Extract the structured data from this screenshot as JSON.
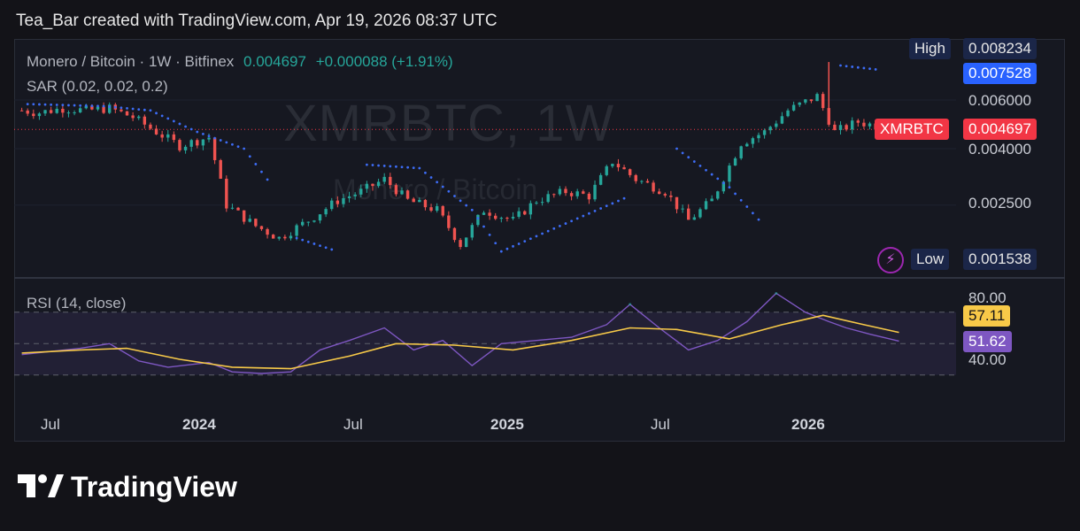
{
  "header": {
    "caption": "Tea_Bar created with TradingView.com, Apr 19, 2026 08:37 UTC"
  },
  "legend": {
    "symbol": "Monero / Bitcoin · 1W · Bitfinex",
    "price": "0.004697",
    "change": "+0.000088 (+1.91%)",
    "sar": "SAR (0.02, 0.02, 0.2)",
    "rsi": "RSI (14, close)"
  },
  "watermark": {
    "ticker": "XMRBTC, 1W",
    "name": "Monero / Bitcoin"
  },
  "price_axis": {
    "high_label": "High",
    "high_value": "0.008234",
    "sar_value": "0.007528",
    "ticker_tag": "XMRBTC",
    "last_value": "0.004697",
    "low_label": "Low",
    "low_value": "0.001538",
    "ticks": [
      "0.006000",
      "0.004000",
      "0.002500"
    ]
  },
  "rsi_axis": {
    "ticks": [
      "80.00",
      "40.00"
    ],
    "ma_value": "57.11",
    "rsi_value": "51.62"
  },
  "time_axis": [
    {
      "label": "Jul",
      "bold": false
    },
    {
      "label": "2024",
      "bold": true
    },
    {
      "label": "Jul",
      "bold": false
    },
    {
      "label": "2025",
      "bold": true
    },
    {
      "label": "Jul",
      "bold": false
    },
    {
      "label": "2026",
      "bold": true
    }
  ],
  "brand": {
    "name": "TradingView"
  },
  "colors": {
    "up": "#26a69a",
    "down": "#ef5350",
    "sar": "#3d6cf5",
    "rsi": "#7e57c2",
    "rsi_ma": "#f7c948",
    "last_price": "#f23645"
  },
  "chart_data": [
    {
      "type": "candlestick",
      "title": "Monero / Bitcoin · 1W · Bitfinex",
      "interval": "1W",
      "scale": "log",
      "x_labels": [
        "Jul",
        "2024",
        "Jul",
        "2025",
        "Jul",
        "2026"
      ],
      "price_ticks": [
        0.006,
        0.004,
        0.0025
      ],
      "last": 0.004697,
      "high": 0.008234,
      "low": 0.001538,
      "close_path": [
        {
          "date": "2023-05-29",
          "close": 0.0055
        },
        {
          "date": "2023-06-19",
          "close": 0.0054
        },
        {
          "date": "2023-07-17",
          "close": 0.0056
        },
        {
          "date": "2023-08-14",
          "close": 0.0055
        },
        {
          "date": "2023-09-11",
          "close": 0.0056
        },
        {
          "date": "2023-10-09",
          "close": 0.0052
        },
        {
          "date": "2023-11-06",
          "close": 0.0046
        },
        {
          "date": "2023-12-04",
          "close": 0.0041
        },
        {
          "date": "2024-01-08",
          "close": 0.0044
        },
        {
          "date": "2024-01-29",
          "close": 0.0025
        },
        {
          "date": "2024-03-04",
          "close": 0.0021
        },
        {
          "date": "2024-04-01",
          "close": 0.0019
        },
        {
          "date": "2024-05-06",
          "close": 0.0022
        },
        {
          "date": "2024-06-10",
          "close": 0.0026
        },
        {
          "date": "2024-07-08",
          "close": 0.0028
        },
        {
          "date": "2024-08-05",
          "close": 0.0031
        },
        {
          "date": "2024-09-02",
          "close": 0.0026
        },
        {
          "date": "2024-10-07",
          "close": 0.0024
        },
        {
          "date": "2024-11-04",
          "close": 0.0018
        },
        {
          "date": "2024-12-02",
          "close": 0.0024
        },
        {
          "date": "2025-01-06",
          "close": 0.0022
        },
        {
          "date": "2025-02-03",
          "close": 0.0026
        },
        {
          "date": "2025-03-10",
          "close": 0.0028
        },
        {
          "date": "2025-04-07",
          "close": 0.0027
        },
        {
          "date": "2025-05-05",
          "close": 0.0036
        },
        {
          "date": "2025-06-02",
          "close": 0.0031
        },
        {
          "date": "2025-07-07",
          "close": 0.0028
        },
        {
          "date": "2025-08-04",
          "close": 0.0022
        },
        {
          "date": "2025-09-01",
          "close": 0.0026
        },
        {
          "date": "2025-10-06",
          "close": 0.0042
        },
        {
          "date": "2025-11-03",
          "close": 0.0046
        },
        {
          "date": "2025-12-01",
          "close": 0.0055
        },
        {
          "date": "2026-01-05",
          "close": 0.0062
        },
        {
          "date": "2026-01-26",
          "close": 0.0046
        },
        {
          "date": "2026-02-23",
          "close": 0.005
        },
        {
          "date": "2026-03-23",
          "close": 0.0048
        },
        {
          "date": "2026-04-13",
          "close": 0.004697
        }
      ],
      "sar_points": [
        {
          "date": "2023-06-05",
          "value": 0.0058
        },
        {
          "date": "2023-09-04",
          "value": 0.0057
        },
        {
          "date": "2023-10-30",
          "value": 0.0055
        },
        {
          "date": "2023-12-25",
          "value": 0.0046
        },
        {
          "date": "2024-02-19",
          "value": 0.004
        },
        {
          "date": "2024-03-25",
          "value": 0.0029
        },
        {
          "date": "2024-04-22",
          "value": 0.0019
        },
        {
          "date": "2024-06-10",
          "value": 0.0017
        },
        {
          "date": "2024-07-15",
          "value": 0.0035
        },
        {
          "date": "2024-09-16",
          "value": 0.0034
        },
        {
          "date": "2024-11-18",
          "value": 0.0024
        },
        {
          "date": "2024-12-23",
          "value": 0.0017
        },
        {
          "date": "2025-03-03",
          "value": 0.0021
        },
        {
          "date": "2025-05-26",
          "value": 0.0027
        },
        {
          "date": "2025-07-21",
          "value": 0.004
        },
        {
          "date": "2025-09-22",
          "value": 0.0029
        },
        {
          "date": "2025-11-03",
          "value": 0.0021
        },
        {
          "date": "2025-12-15",
          "value": 0.0031
        },
        {
          "date": "2026-01-19",
          "value": 0.0048
        },
        {
          "date": "2026-02-02",
          "value": 0.008
        },
        {
          "date": "2026-03-23",
          "value": 0.0077
        }
      ]
    },
    {
      "type": "line",
      "title": "RSI (14, close)",
      "bands": [
        70,
        30
      ],
      "y_ticks": [
        80,
        40
      ],
      "series": [
        {
          "name": "RSI",
          "last": 51.62,
          "points": [
            {
              "date": "2023-05-29",
              "value": 43
            },
            {
              "date": "2023-07-03",
              "value": 45
            },
            {
              "date": "2023-08-07",
              "value": 47
            },
            {
              "date": "2023-09-11",
              "value": 50
            },
            {
              "date": "2023-10-16",
              "value": 39
            },
            {
              "date": "2023-11-20",
              "value": 35
            },
            {
              "date": "2024-01-08",
              "value": 38
            },
            {
              "date": "2024-02-05",
              "value": 32
            },
            {
              "date": "2024-03-11",
              "value": 31
            },
            {
              "date": "2024-04-15",
              "value": 32
            },
            {
              "date": "2024-05-20",
              "value": 46
            },
            {
              "date": "2024-06-24",
              "value": 52
            },
            {
              "date": "2024-08-05",
              "value": 60
            },
            {
              "date": "2024-09-09",
              "value": 46
            },
            {
              "date": "2024-10-14",
              "value": 52
            },
            {
              "date": "2024-11-18",
              "value": 36
            },
            {
              "date": "2024-12-23",
              "value": 50
            },
            {
              "date": "2025-02-03",
              "value": 52
            },
            {
              "date": "2025-03-17",
              "value": 54
            },
            {
              "date": "2025-04-28",
              "value": 62
            },
            {
              "date": "2025-05-26",
              "value": 75
            },
            {
              "date": "2025-06-30",
              "value": 60
            },
            {
              "date": "2025-08-04",
              "value": 46
            },
            {
              "date": "2025-09-08",
              "value": 52
            },
            {
              "date": "2025-10-13",
              "value": 64
            },
            {
              "date": "2025-11-17",
              "value": 82
            },
            {
              "date": "2025-12-22",
              "value": 70
            },
            {
              "date": "2026-01-19",
              "value": 64
            },
            {
              "date": "2026-02-09",
              "value": 60
            },
            {
              "date": "2026-03-09",
              "value": 56
            },
            {
              "date": "2026-04-13",
              "value": 51.62
            }
          ]
        },
        {
          "name": "RSI-based MA",
          "last": 57.11,
          "points": [
            {
              "date": "2023-05-29",
              "value": 44
            },
            {
              "date": "2023-08-07",
              "value": 46
            },
            {
              "date": "2023-10-02",
              "value": 47
            },
            {
              "date": "2023-12-04",
              "value": 40
            },
            {
              "date": "2024-02-05",
              "value": 35
            },
            {
              "date": "2024-04-15",
              "value": 34
            },
            {
              "date": "2024-06-24",
              "value": 42
            },
            {
              "date": "2024-08-19",
              "value": 50
            },
            {
              "date": "2024-10-28",
              "value": 49
            },
            {
              "date": "2025-01-06",
              "value": 46
            },
            {
              "date": "2025-03-17",
              "value": 52
            },
            {
              "date": "2025-05-26",
              "value": 60
            },
            {
              "date": "2025-07-21",
              "value": 59
            },
            {
              "date": "2025-09-22",
              "value": 53
            },
            {
              "date": "2025-11-24",
              "value": 62
            },
            {
              "date": "2026-01-12",
              "value": 68
            },
            {
              "date": "2026-03-02",
              "value": 62
            },
            {
              "date": "2026-04-13",
              "value": 57.11
            }
          ]
        }
      ]
    }
  ]
}
